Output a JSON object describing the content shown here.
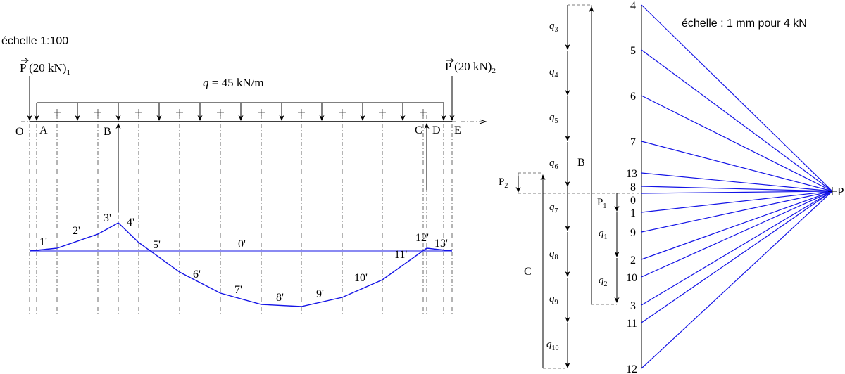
{
  "scale_left": "échelle 1:100",
  "scale_right": "échelle : 1 mm pour 4 kN",
  "load_q": {
    "var": "q",
    "rest": " = 45 kN/m"
  },
  "force_p1": {
    "main": "P (20 kN)",
    "sub": "1"
  },
  "force_p2": {
    "main": "P (20 kN)",
    "sub": "2"
  },
  "beam_points": [
    "O",
    "A",
    "B",
    "C",
    "D",
    "E"
  ],
  "funicular_labels": [
    "0'",
    "1'",
    "2'",
    "3'",
    "4'",
    "5'",
    "6'",
    "7'",
    "8'",
    "9'",
    "10'",
    "11'",
    "12'",
    "13'"
  ],
  "force_polygon": {
    "q_labels": [
      "q3",
      "q4",
      "q5",
      "q6",
      "q7",
      "q8",
      "q9",
      "q10"
    ],
    "q_left_labels": [
      "q1",
      "q2"
    ],
    "p_labels": [
      "P2",
      "P1"
    ],
    "reactions": [
      "B",
      "C"
    ],
    "numbers": [
      "4",
      "5",
      "6",
      "7",
      "13",
      "8",
      "0",
      "1",
      "9",
      "2",
      "10",
      "3",
      "11",
      "12"
    ],
    "pole": "P"
  },
  "colors": {
    "funicular": "#1414e6",
    "lines": "#000000"
  }
}
